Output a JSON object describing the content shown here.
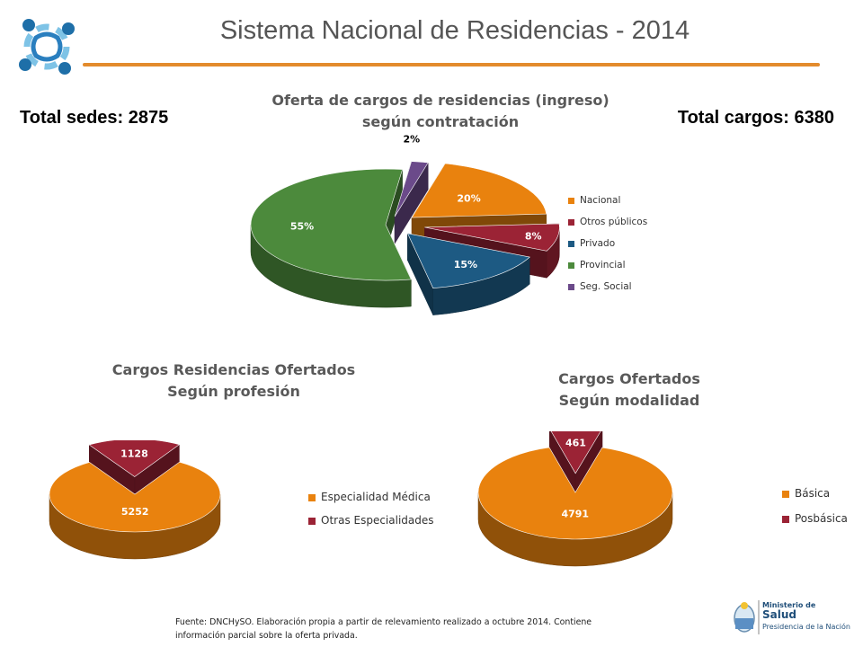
{
  "header": {
    "title": "Sistema Nacional de Residencias - 2014"
  },
  "totals": {
    "sedes": "Total sedes: 2875",
    "cargos": "Total cargos: 6380"
  },
  "colors": {
    "orange": "#e9820e",
    "red": "#9b2335",
    "blue": "#1d5a83",
    "green": "#4c8a3c",
    "purple": "#6b4a8a",
    "rule": "#e38b2c"
  },
  "chart_data": [
    {
      "type": "pie",
      "title": "Oferta de cargos de residencias (ingreso) según contratación",
      "categories": [
        "Nacional",
        "Otros públicos",
        "Privado",
        "Provincial",
        "Seg. Social"
      ],
      "values": [
        20,
        8,
        15,
        55,
        2
      ],
      "data_labels": [
        "20%",
        "8%",
        "15%",
        "55%",
        "2%"
      ],
      "legend": "right"
    },
    {
      "type": "pie",
      "title": "Cargos Residencias Ofertados Según profesión",
      "categories": [
        "Especialidad Médica",
        "Otras Especialidades"
      ],
      "values": [
        5252,
        1128
      ],
      "data_labels": [
        "5252",
        "1128"
      ],
      "legend": "right"
    },
    {
      "type": "pie",
      "title": "Cargos Ofertados Según modalidad",
      "categories": [
        "Básica",
        "Posbásica"
      ],
      "values": [
        4791,
        461
      ],
      "data_labels": [
        "4791",
        "461"
      ],
      "legend": "right"
    }
  ],
  "footer": {
    "line1": "Fuente: DNCHySO.  Elaboración propia  a partir de relevamiento realizado a octubre  2014. Contiene",
    "line2": "información parcial sobre la oferta privada."
  },
  "ministerio": {
    "line1": "Ministerio de",
    "line2": "Salud",
    "line3": "Presidencia de la Nación"
  }
}
